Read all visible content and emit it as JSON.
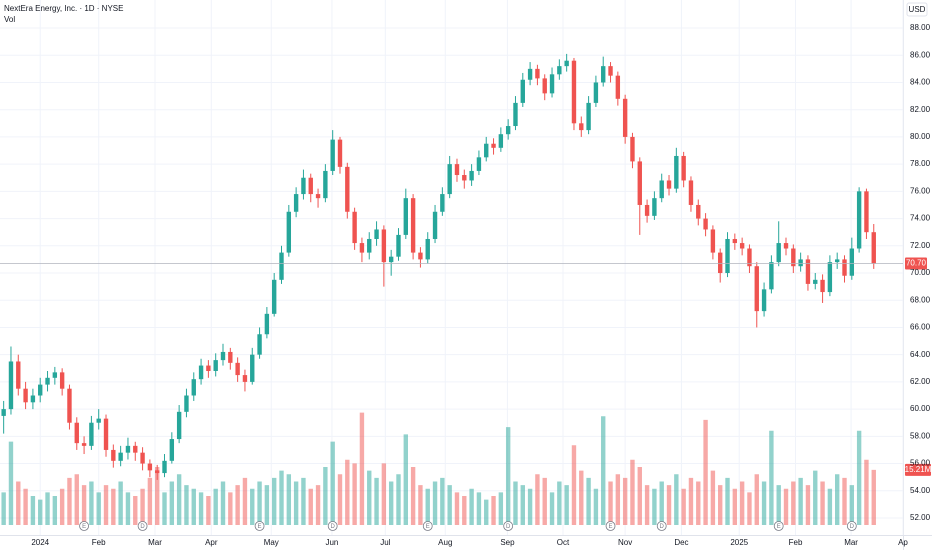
{
  "chart_data": {
    "type": "candlestick",
    "title": "NextEra Energy, Inc. · 1D · NYSE",
    "volume_title": "Vol",
    "currency": "USD",
    "up_color": "#26a69a",
    "down_color": "#ef5350",
    "open": [
      59.5,
      60.0,
      63.5,
      61.5,
      60.5,
      61.0,
      61.8,
      62.3,
      62.7,
      61.5,
      59.0,
      57.5,
      57.3,
      59.0,
      59.3,
      57.0,
      56.2,
      56.8,
      57.3,
      56.8,
      56.0,
      55.5,
      55.3,
      56.2,
      57.8,
      59.8,
      61.0,
      62.2,
      63.2,
      62.8,
      63.6,
      64.2,
      63.4,
      62.5,
      62.0,
      64.0,
      65.5,
      67.0,
      69.5,
      71.5,
      74.5,
      75.8,
      77.0,
      75.8,
      75.5,
      77.5,
      79.8,
      77.8,
      74.5,
      72.2,
      71.5,
      72.5,
      73.2,
      70.8,
      71.2,
      72.8,
      75.5,
      71.5,
      71.0,
      72.5,
      74.5,
      75.8,
      78.0,
      77.2,
      76.8,
      77.5,
      78.5,
      79.5,
      79.2,
      80.2,
      80.8,
      82.5,
      84.2,
      85.0,
      84.3,
      83.2,
      84.6,
      85.2,
      85.6,
      81.0,
      80.5,
      82.5,
      84.0,
      85.2,
      84.5,
      82.8,
      80.0,
      78.2,
      75.0,
      74.2,
      75.5,
      76.8,
      76.2,
      78.6,
      76.8,
      75.0,
      74.0,
      73.2,
      71.5,
      70.0,
      72.5,
      72.2,
      71.8,
      70.5,
      67.2,
      68.8,
      70.8,
      72.2,
      71.8,
      70.5,
      71.0,
      69.2,
      69.5,
      68.6,
      70.8,
      71.0,
      69.8,
      71.8,
      76.0,
      73.0
    ],
    "high": [
      60.6,
      64.6,
      64.0,
      62.0,
      61.5,
      62.3,
      62.8,
      63.1,
      63.0,
      61.8,
      59.4,
      58.0,
      59.5,
      60.0,
      59.6,
      57.4,
      57.3,
      57.9,
      57.6,
      57.2,
      56.3,
      55.9,
      56.7,
      58.3,
      60.3,
      61.5,
      62.7,
      63.7,
      63.6,
      64.1,
      64.8,
      64.5,
      63.8,
      62.9,
      64.5,
      66.0,
      67.5,
      70.0,
      72.0,
      75.0,
      76.3,
      77.6,
      77.3,
      76.2,
      78.0,
      80.5,
      80.0,
      78.1,
      74.8,
      72.6,
      73.0,
      73.8,
      73.5,
      71.7,
      73.3,
      76.2,
      75.8,
      71.9,
      73.0,
      75.0,
      76.3,
      78.6,
      78.4,
      77.6,
      78.0,
      79.0,
      80.0,
      79.9,
      80.7,
      81.3,
      83.0,
      84.7,
      85.5,
      85.3,
      84.6,
      85.1,
      85.7,
      86.1,
      85.8,
      81.5,
      83.0,
      84.5,
      85.9,
      85.5,
      84.8,
      83.1,
      80.3,
      78.5,
      75.4,
      76.0,
      77.3,
      77.2,
      79.2,
      78.9,
      77.1,
      75.4,
      74.4,
      73.5,
      71.8,
      73.0,
      72.9,
      72.6,
      72.1,
      70.8,
      69.3,
      71.3,
      73.8,
      72.6,
      72.1,
      71.5,
      71.3,
      70.0,
      69.9,
      71.3,
      71.5,
      71.3,
      72.6,
      76.3,
      76.2,
      73.6
    ],
    "low": [
      58.2,
      59.6,
      61.0,
      60.0,
      60.0,
      60.5,
      61.3,
      61.8,
      61.0,
      58.5,
      57.0,
      56.7,
      57.0,
      58.5,
      56.5,
      55.7,
      55.8,
      56.3,
      56.2,
      55.5,
      55.0,
      54.8,
      55.0,
      56.0,
      57.5,
      59.4,
      60.6,
      61.8,
      62.3,
      62.4,
      63.2,
      62.9,
      62.0,
      61.3,
      61.8,
      63.7,
      65.2,
      66.8,
      69.2,
      71.2,
      74.1,
      75.4,
      75.2,
      74.8,
      75.2,
      77.2,
      77.3,
      74.0,
      71.7,
      70.8,
      71.0,
      72.0,
      69.0,
      69.8,
      70.9,
      72.5,
      71.0,
      70.4,
      70.7,
      72.2,
      74.2,
      75.5,
      76.7,
      76.2,
      76.4,
      77.2,
      78.2,
      78.7,
      78.9,
      79.8,
      80.5,
      82.2,
      83.8,
      83.8,
      82.7,
      82.9,
      84.2,
      84.8,
      80.5,
      80.0,
      80.2,
      82.2,
      83.7,
      84.0,
      82.3,
      79.5,
      77.7,
      72.8,
      73.7,
      73.9,
      75.2,
      75.7,
      75.9,
      76.3,
      74.5,
      73.5,
      72.7,
      71.0,
      69.3,
      69.7,
      71.7,
      71.3,
      70.0,
      66.0,
      66.8,
      68.5,
      70.5,
      71.3,
      70.0,
      70.1,
      68.7,
      68.8,
      67.8,
      68.3,
      70.3,
      69.3,
      69.5,
      71.5,
      72.5,
      70.3
    ],
    "close": [
      60.0,
      63.5,
      61.5,
      60.5,
      61.0,
      61.8,
      62.3,
      62.7,
      61.5,
      59.0,
      57.5,
      57.3,
      59.0,
      59.3,
      57.0,
      56.2,
      56.8,
      57.3,
      56.8,
      56.0,
      55.5,
      55.3,
      56.2,
      57.8,
      59.8,
      61.0,
      62.2,
      63.2,
      62.8,
      63.6,
      64.2,
      63.4,
      62.5,
      62.0,
      64.0,
      65.5,
      67.0,
      69.5,
      71.5,
      74.5,
      75.8,
      77.0,
      75.8,
      75.5,
      77.5,
      79.8,
      77.8,
      74.5,
      72.2,
      71.5,
      72.5,
      73.2,
      70.8,
      71.2,
      72.8,
      75.5,
      71.5,
      71.0,
      72.5,
      74.5,
      75.8,
      78.0,
      77.2,
      76.8,
      77.5,
      78.5,
      79.5,
      79.2,
      80.2,
      80.8,
      82.5,
      84.2,
      85.0,
      84.3,
      83.2,
      84.6,
      85.2,
      85.6,
      81.0,
      80.5,
      82.5,
      84.0,
      85.2,
      84.5,
      82.8,
      80.0,
      78.2,
      75.0,
      74.2,
      75.5,
      76.8,
      76.2,
      78.6,
      76.8,
      75.0,
      74.0,
      73.2,
      71.5,
      70.0,
      72.5,
      72.2,
      71.8,
      70.5,
      67.2,
      68.8,
      70.8,
      72.2,
      71.8,
      70.5,
      71.0,
      69.2,
      69.5,
      68.6,
      70.8,
      71.0,
      69.8,
      71.8,
      76.0,
      73.0,
      70.7
    ],
    "volume": [
      9,
      23,
      12,
      10,
      8,
      7,
      9,
      8,
      10,
      13,
      14,
      11,
      12,
      9,
      11,
      10,
      12,
      9,
      8,
      10,
      13,
      16,
      9,
      12,
      14,
      11,
      10,
      9,
      8,
      10,
      12,
      9,
      11,
      13,
      10,
      12,
      11,
      13,
      15,
      14,
      12,
      13,
      10,
      11,
      16,
      23,
      14,
      18,
      17,
      31,
      15,
      13,
      17,
      12,
      14,
      25,
      16,
      11,
      10,
      12,
      13,
      11,
      9,
      8,
      10,
      9,
      7,
      8,
      9,
      27,
      12,
      11,
      10,
      14,
      13,
      9,
      12,
      11,
      22,
      15,
      13,
      10,
      30,
      12,
      14,
      13,
      18,
      16,
      11,
      10,
      12,
      11,
      14,
      10,
      13,
      12,
      29,
      15,
      11,
      13,
      10,
      12,
      9,
      14,
      12,
      26,
      11,
      10,
      12,
      13,
      11,
      15,
      12,
      10,
      14,
      13,
      11,
      26,
      18,
      15.21
    ],
    "last_close_label": "70.70",
    "last_volume_label": "15.21M",
    "xlim": [
      -0.5,
      123
    ],
    "xticks": [
      {
        "value": 5,
        "label": "2024"
      },
      {
        "value": 13,
        "label": "Feb"
      },
      {
        "value": 20.7,
        "label": "Mar"
      },
      {
        "value": 28.4,
        "label": "Apr"
      },
      {
        "value": 36.6,
        "label": "May"
      },
      {
        "value": 44.9,
        "label": "Jun"
      },
      {
        "value": 52.2,
        "label": "Jul"
      },
      {
        "value": 60.4,
        "label": "Aug"
      },
      {
        "value": 68.9,
        "label": "Sep"
      },
      {
        "value": 76.5,
        "label": "Oct"
      },
      {
        "value": 85,
        "label": "Nov"
      },
      {
        "value": 92.7,
        "label": "Dec"
      },
      {
        "value": 100.6,
        "label": "2025"
      },
      {
        "value": 108.3,
        "label": "Feb"
      },
      {
        "value": 115.9,
        "label": "Mar"
      },
      {
        "value": 123,
        "label": "Ap"
      }
    ],
    "ylim": [
      50.75,
      90.06
    ],
    "yticks": [
      {
        "value": 52,
        "label": "52.00"
      },
      {
        "value": 54,
        "label": "54.00"
      },
      {
        "value": 56,
        "label": "56.00"
      },
      {
        "value": 58,
        "label": "58.00"
      },
      {
        "value": 60,
        "label": "60.00"
      },
      {
        "value": 62,
        "label": "62.00"
      },
      {
        "value": 64,
        "label": "64.00"
      },
      {
        "value": 66,
        "label": "66.00"
      },
      {
        "value": 68,
        "label": "68.00"
      },
      {
        "value": 70,
        "label": "70.00"
      },
      {
        "value": 72,
        "label": "72.00"
      },
      {
        "value": 74,
        "label": "74.00"
      },
      {
        "value": 76,
        "label": "76.00"
      },
      {
        "value": 78,
        "label": "78.00"
      },
      {
        "value": 80,
        "label": "80.00"
      },
      {
        "value": 82,
        "label": "82.00"
      },
      {
        "value": 84,
        "label": "84.00"
      },
      {
        "value": 86,
        "label": "86.00"
      },
      {
        "value": 88,
        "label": "88.00"
      }
    ],
    "volume_ylim": [
      0,
      40
    ],
    "events": [
      {
        "x": 11,
        "label": "E"
      },
      {
        "x": 19,
        "label": "D"
      },
      {
        "x": 35,
        "label": "E"
      },
      {
        "x": 45,
        "label": "D"
      },
      {
        "x": 58,
        "label": "E"
      },
      {
        "x": 69,
        "label": "D"
      },
      {
        "x": 83,
        "label": "E"
      },
      {
        "x": 90,
        "label": "D"
      },
      {
        "x": 106,
        "label": "E"
      },
      {
        "x": 116,
        "label": "D"
      }
    ],
    "grid": true
  }
}
